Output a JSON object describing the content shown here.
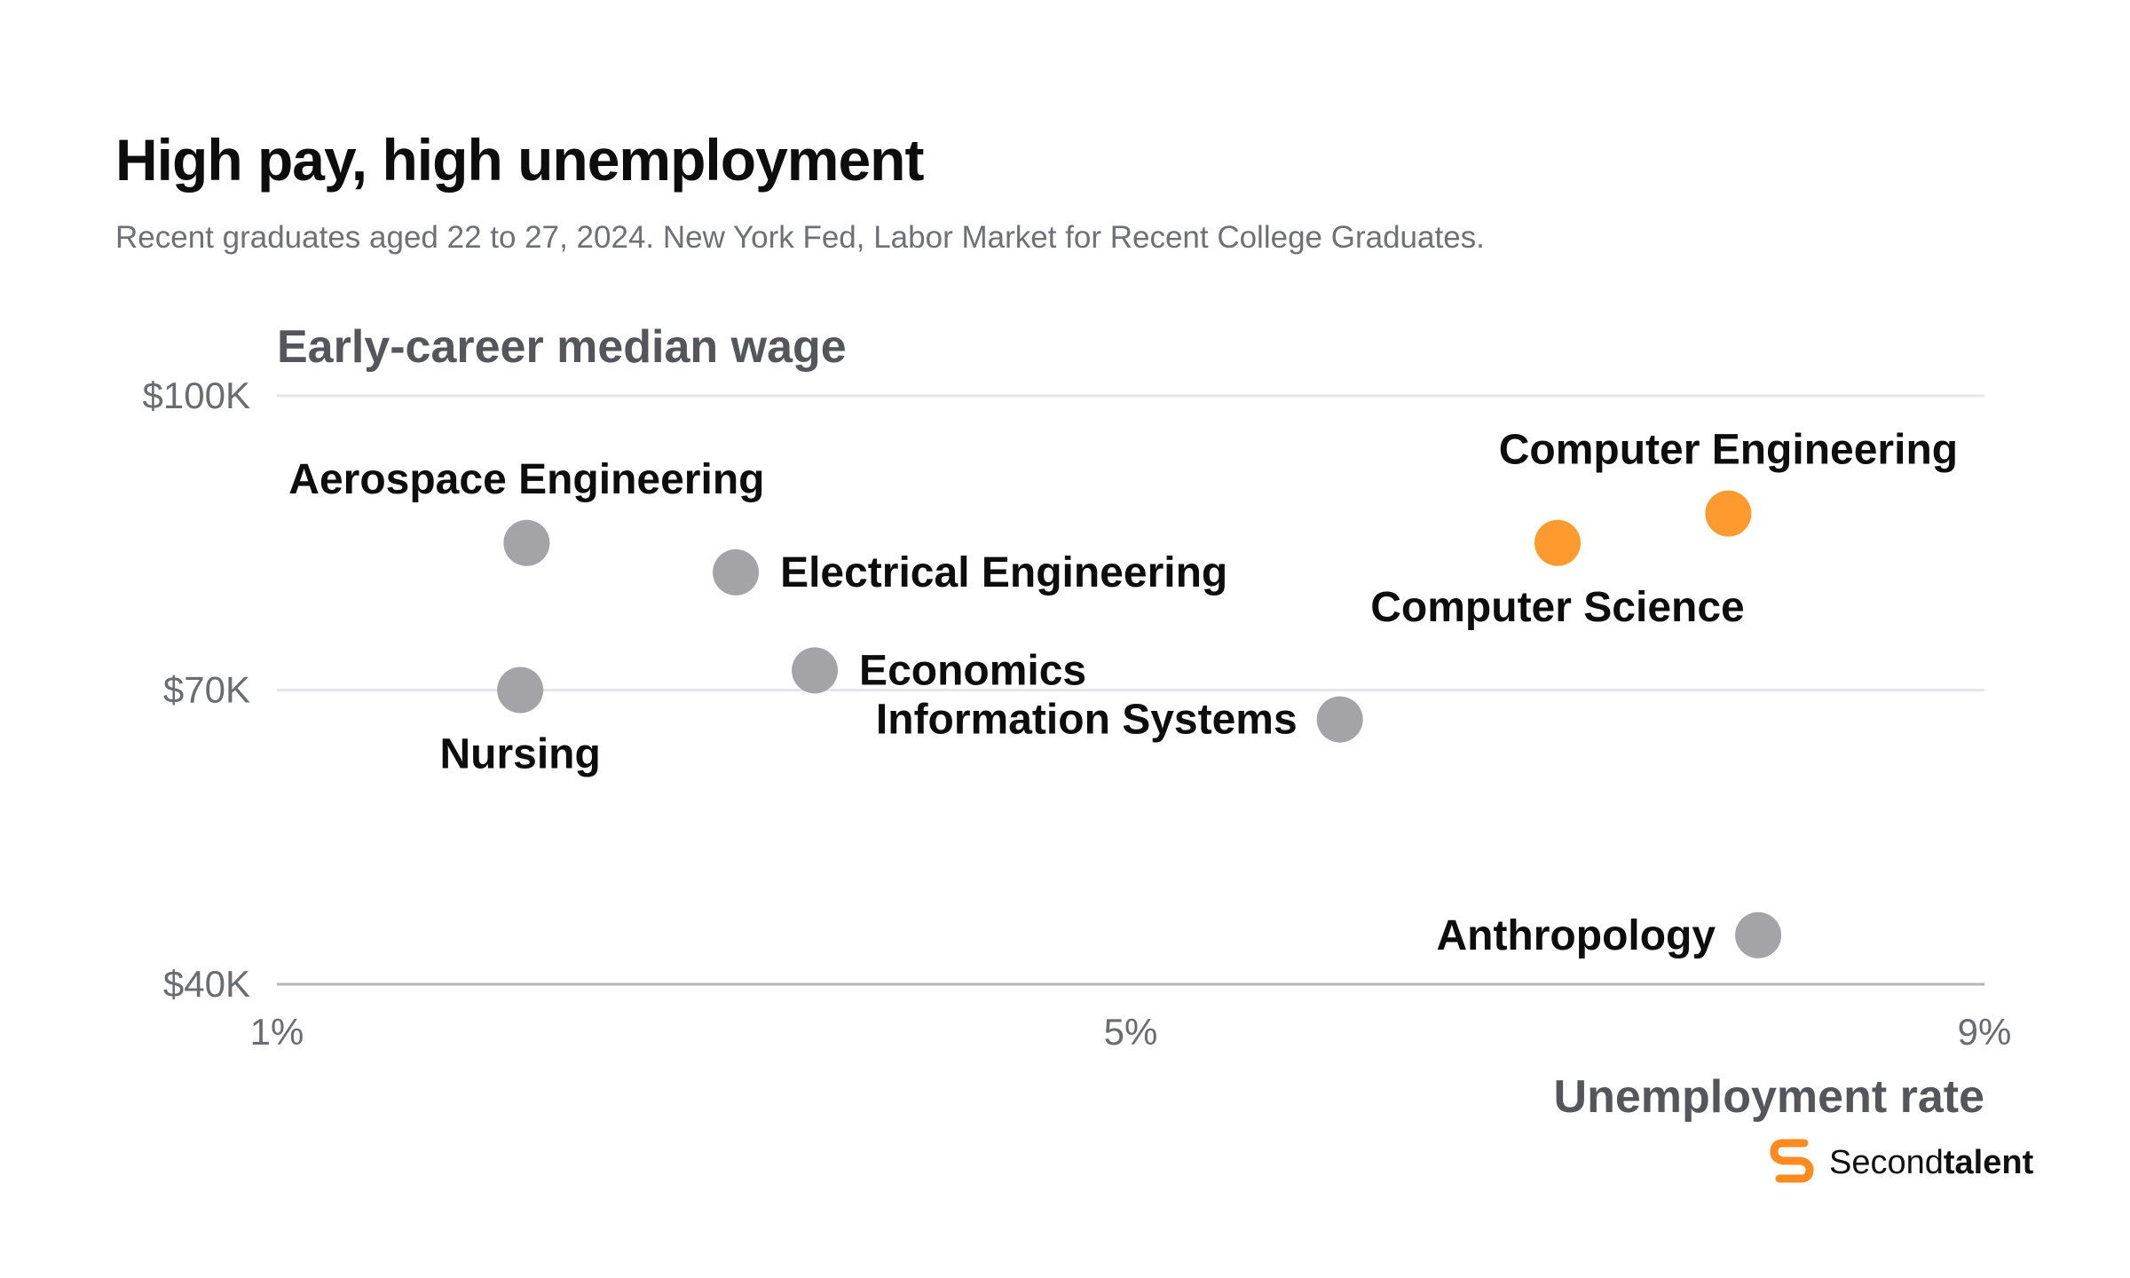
{
  "header": {
    "title": "High pay, high unemployment",
    "subtitle": "Recent graduates aged 22 to 27, 2024. New York Fed, Labor Market for Recent College Graduates."
  },
  "chart_data": {
    "type": "scatter",
    "ylabel": "Early-career median wage",
    "xlabel": "Unemployment rate",
    "xlim": [
      1,
      9
    ],
    "ylim": [
      40000,
      100000
    ],
    "x_ticks": [
      {
        "value": 1,
        "label": "1%"
      },
      {
        "value": 5,
        "label": "5%"
      },
      {
        "value": 9,
        "label": "9%"
      }
    ],
    "y_ticks": [
      {
        "value": 100000,
        "label": "$100K"
      },
      {
        "value": 70000,
        "label": "$70K"
      },
      {
        "value": 40000,
        "label": "$40K"
      }
    ],
    "grid": true,
    "highlight_color": "#FF9A2E",
    "default_color": "#A3A3A8",
    "points": [
      {
        "name": "Aerospace Engineering",
        "x": 2.17,
        "y": 85000,
        "highlight": false,
        "label_pos": "above"
      },
      {
        "name": "Nursing",
        "x": 2.14,
        "y": 70000,
        "highlight": false,
        "label_pos": "below"
      },
      {
        "name": "Electrical Engineering",
        "x": 3.15,
        "y": 82000,
        "highlight": false,
        "label_pos": "right"
      },
      {
        "name": "Economics",
        "x": 3.52,
        "y": 72000,
        "highlight": false,
        "label_pos": "right"
      },
      {
        "name": "Information Systems",
        "x": 5.98,
        "y": 67000,
        "highlight": false,
        "label_pos": "left"
      },
      {
        "name": "Computer Science",
        "x": 7.0,
        "y": 85000,
        "highlight": true,
        "label_pos": "below"
      },
      {
        "name": "Computer Engineering",
        "x": 7.8,
        "y": 88000,
        "highlight": true,
        "label_pos": "above"
      },
      {
        "name": "Anthropology",
        "x": 7.94,
        "y": 45000,
        "highlight": false,
        "label_pos": "left"
      }
    ]
  },
  "brand": {
    "name_regular": "Second",
    "name_bold": "talent",
    "icon": "secondtalent-logo-icon",
    "color": "#FF8A1F"
  }
}
